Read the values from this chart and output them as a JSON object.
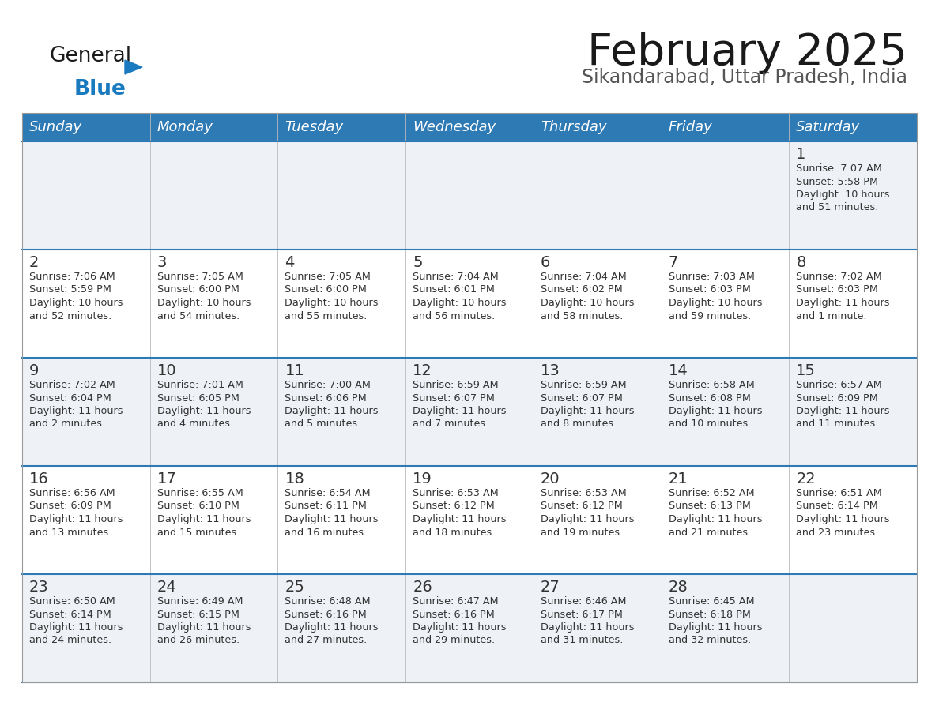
{
  "title": "February 2025",
  "subtitle": "Sikandarabad, Uttar Pradesh, India",
  "header_bg": "#2e7ab5",
  "header_text_color": "#ffffff",
  "day_headers": [
    "Sunday",
    "Monday",
    "Tuesday",
    "Wednesday",
    "Thursday",
    "Friday",
    "Saturday"
  ],
  "row_bg_even": "#ffffff",
  "row_bg_odd": "#eef2f7",
  "separator_color": "#2e7ab5",
  "cell_border_color": "#cccccc",
  "date_color": "#333333",
  "info_color": "#333333",
  "logo_general_color": "#1a1a1a",
  "logo_blue_color": "#1a7abf",
  "calendar_data": [
    [
      null,
      null,
      null,
      null,
      null,
      null,
      {
        "day": 1,
        "sunrise": "7:07 AM",
        "sunset": "5:58 PM",
        "daylight": "10 hours and 51 minutes"
      }
    ],
    [
      {
        "day": 2,
        "sunrise": "7:06 AM",
        "sunset": "5:59 PM",
        "daylight": "10 hours and 52 minutes"
      },
      {
        "day": 3,
        "sunrise": "7:05 AM",
        "sunset": "6:00 PM",
        "daylight": "10 hours and 54 minutes"
      },
      {
        "day": 4,
        "sunrise": "7:05 AM",
        "sunset": "6:00 PM",
        "daylight": "10 hours and 55 minutes"
      },
      {
        "day": 5,
        "sunrise": "7:04 AM",
        "sunset": "6:01 PM",
        "daylight": "10 hours and 56 minutes"
      },
      {
        "day": 6,
        "sunrise": "7:04 AM",
        "sunset": "6:02 PM",
        "daylight": "10 hours and 58 minutes"
      },
      {
        "day": 7,
        "sunrise": "7:03 AM",
        "sunset": "6:03 PM",
        "daylight": "10 hours and 59 minutes"
      },
      {
        "day": 8,
        "sunrise": "7:02 AM",
        "sunset": "6:03 PM",
        "daylight": "11 hours and 1 minute"
      }
    ],
    [
      {
        "day": 9,
        "sunrise": "7:02 AM",
        "sunset": "6:04 PM",
        "daylight": "11 hours and 2 minutes"
      },
      {
        "day": 10,
        "sunrise": "7:01 AM",
        "sunset": "6:05 PM",
        "daylight": "11 hours and 4 minutes"
      },
      {
        "day": 11,
        "sunrise": "7:00 AM",
        "sunset": "6:06 PM",
        "daylight": "11 hours and 5 minutes"
      },
      {
        "day": 12,
        "sunrise": "6:59 AM",
        "sunset": "6:07 PM",
        "daylight": "11 hours and 7 minutes"
      },
      {
        "day": 13,
        "sunrise": "6:59 AM",
        "sunset": "6:07 PM",
        "daylight": "11 hours and 8 minutes"
      },
      {
        "day": 14,
        "sunrise": "6:58 AM",
        "sunset": "6:08 PM",
        "daylight": "11 hours and 10 minutes"
      },
      {
        "day": 15,
        "sunrise": "6:57 AM",
        "sunset": "6:09 PM",
        "daylight": "11 hours and 11 minutes"
      }
    ],
    [
      {
        "day": 16,
        "sunrise": "6:56 AM",
        "sunset": "6:09 PM",
        "daylight": "11 hours and 13 minutes"
      },
      {
        "day": 17,
        "sunrise": "6:55 AM",
        "sunset": "6:10 PM",
        "daylight": "11 hours and 15 minutes"
      },
      {
        "day": 18,
        "sunrise": "6:54 AM",
        "sunset": "6:11 PM",
        "daylight": "11 hours and 16 minutes"
      },
      {
        "day": 19,
        "sunrise": "6:53 AM",
        "sunset": "6:12 PM",
        "daylight": "11 hours and 18 minutes"
      },
      {
        "day": 20,
        "sunrise": "6:53 AM",
        "sunset": "6:12 PM",
        "daylight": "11 hours and 19 minutes"
      },
      {
        "day": 21,
        "sunrise": "6:52 AM",
        "sunset": "6:13 PM",
        "daylight": "11 hours and 21 minutes"
      },
      {
        "day": 22,
        "sunrise": "6:51 AM",
        "sunset": "6:14 PM",
        "daylight": "11 hours and 23 minutes"
      }
    ],
    [
      {
        "day": 23,
        "sunrise": "6:50 AM",
        "sunset": "6:14 PM",
        "daylight": "11 hours and 24 minutes"
      },
      {
        "day": 24,
        "sunrise": "6:49 AM",
        "sunset": "6:15 PM",
        "daylight": "11 hours and 26 minutes"
      },
      {
        "day": 25,
        "sunrise": "6:48 AM",
        "sunset": "6:16 PM",
        "daylight": "11 hours and 27 minutes"
      },
      {
        "day": 26,
        "sunrise": "6:47 AM",
        "sunset": "6:16 PM",
        "daylight": "11 hours and 29 minutes"
      },
      {
        "day": 27,
        "sunrise": "6:46 AM",
        "sunset": "6:17 PM",
        "daylight": "11 hours and 31 minutes"
      },
      {
        "day": 28,
        "sunrise": "6:45 AM",
        "sunset": "6:18 PM",
        "daylight": "11 hours and 32 minutes"
      },
      null
    ]
  ],
  "figsize": [
    11.88,
    9.18
  ],
  "dpi": 100
}
